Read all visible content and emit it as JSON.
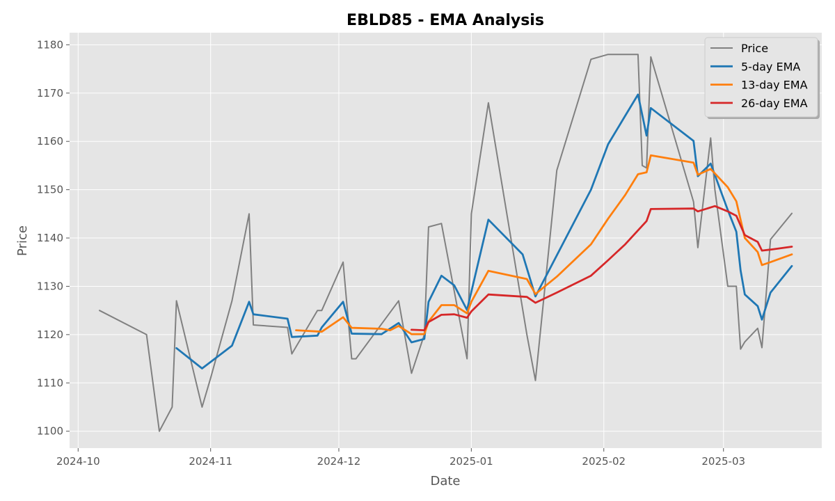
{
  "chart_data": {
    "type": "line",
    "title": "EBLD85 - EMA Analysis",
    "xlabel": "Date",
    "ylabel": "Price",
    "xlim": [
      "2024-09-29",
      "2025-03-24"
    ],
    "ylim": [
      1096.5,
      1182.5
    ],
    "x_ticks": [
      {
        "date": "2024-10-01",
        "label": "2024-10"
      },
      {
        "date": "2024-11-01",
        "label": "2024-11"
      },
      {
        "date": "2024-12-01",
        "label": "2024-12"
      },
      {
        "date": "2025-01-01",
        "label": "2025-01"
      },
      {
        "date": "2025-02-01",
        "label": "2025-02"
      },
      {
        "date": "2025-03-01",
        "label": "2025-03"
      }
    ],
    "y_ticks": [
      1100,
      1110,
      1120,
      1130,
      1140,
      1150,
      1160,
      1170,
      1180
    ],
    "grid": true,
    "legend_position": "top-right",
    "series": [
      {
        "name": "Price",
        "color": "#808080",
        "points": [
          [
            "2024-10-06",
            1125
          ],
          [
            "2024-10-17",
            1120
          ],
          [
            "2024-10-20",
            1100
          ],
          [
            "2024-10-23",
            1105
          ],
          [
            "2024-10-24",
            1127
          ],
          [
            "2024-10-30",
            1105
          ],
          [
            "2024-11-01",
            1111
          ],
          [
            "2024-11-06",
            1127
          ],
          [
            "2024-11-10",
            1145
          ],
          [
            "2024-11-11",
            1122
          ],
          [
            "2024-11-19",
            1121.5
          ],
          [
            "2024-11-20",
            1116
          ],
          [
            "2024-11-26",
            1125
          ],
          [
            "2024-11-27",
            1125
          ],
          [
            "2024-12-02",
            1135
          ],
          [
            "2024-12-04",
            1115
          ],
          [
            "2024-12-05",
            1115
          ],
          [
            "2024-12-15",
            1127
          ],
          [
            "2024-12-18",
            1112
          ],
          [
            "2024-12-21",
            1120
          ],
          [
            "2024-12-22",
            1142.3
          ],
          [
            "2024-12-25",
            1143
          ],
          [
            "2024-12-31",
            1115
          ],
          [
            "2025-01-01",
            1145
          ],
          [
            "2025-01-05",
            1168
          ],
          [
            "2025-01-14",
            1120
          ],
          [
            "2025-01-16",
            1110.5
          ],
          [
            "2025-01-21",
            1154
          ],
          [
            "2025-01-29",
            1177
          ],
          [
            "2025-02-02",
            1178
          ],
          [
            "2025-02-09",
            1178
          ],
          [
            "2025-02-10",
            1155
          ],
          [
            "2025-02-11",
            1154.5
          ],
          [
            "2025-02-12",
            1177.5
          ],
          [
            "2025-02-22",
            1147.5
          ],
          [
            "2025-02-23",
            1138
          ],
          [
            "2025-02-26",
            1160.7
          ],
          [
            "2025-02-27",
            1150
          ],
          [
            "2025-03-02",
            1130
          ],
          [
            "2025-03-04",
            1130
          ],
          [
            "2025-03-05",
            1117
          ],
          [
            "2025-03-06",
            1118.5
          ],
          [
            "2025-03-09",
            1121.3
          ],
          [
            "2025-03-10",
            1117.3
          ],
          [
            "2025-03-12",
            1139.7
          ],
          [
            "2025-03-17",
            1145.1
          ]
        ]
      },
      {
        "name": "5-day EMA",
        "color": "#1f77b4",
        "points": [
          [
            "2024-10-24",
            1117.2
          ],
          [
            "2024-10-30",
            1113
          ],
          [
            "2024-11-06",
            1117.7
          ],
          [
            "2024-11-10",
            1126.8
          ],
          [
            "2024-11-11",
            1124.2
          ],
          [
            "2024-11-19",
            1123.3
          ],
          [
            "2024-11-20",
            1119.5
          ],
          [
            "2024-11-26",
            1119.8
          ],
          [
            "2024-11-27",
            1121.5
          ],
          [
            "2024-12-02",
            1126.8
          ],
          [
            "2024-12-04",
            1120.2
          ],
          [
            "2024-12-11",
            1120.1
          ],
          [
            "2024-12-15",
            1122.4
          ],
          [
            "2024-12-18",
            1118.4
          ],
          [
            "2024-12-21",
            1119.1
          ],
          [
            "2024-12-22",
            1126.8
          ],
          [
            "2024-12-25",
            1132.2
          ],
          [
            "2024-12-28",
            1130.2
          ],
          [
            "2024-12-31",
            1125.1
          ],
          [
            "2025-01-05",
            1143.8
          ],
          [
            "2025-01-13",
            1136.6
          ],
          [
            "2025-01-16",
            1127.9
          ],
          [
            "2025-01-29",
            1150
          ],
          [
            "2025-02-02",
            1159.4
          ],
          [
            "2025-02-06",
            1165.3
          ],
          [
            "2025-02-09",
            1169.7
          ],
          [
            "2025-02-11",
            1161.2
          ],
          [
            "2025-02-12",
            1166.9
          ],
          [
            "2025-02-22",
            1160.1
          ],
          [
            "2025-02-23",
            1152.8
          ],
          [
            "2025-02-26",
            1155.4
          ],
          [
            "2025-03-02",
            1145.8
          ],
          [
            "2025-03-04",
            1141.3
          ],
          [
            "2025-03-05",
            1133.3
          ],
          [
            "2025-03-06",
            1128.3
          ],
          [
            "2025-03-09",
            1125.9
          ],
          [
            "2025-03-10",
            1123.1
          ],
          [
            "2025-03-12",
            1128.7
          ],
          [
            "2025-03-17",
            1134.2
          ]
        ]
      },
      {
        "name": "13-day EMA",
        "color": "#ff7f0e",
        "points": [
          [
            "2024-11-21",
            1120.9
          ],
          [
            "2024-11-27",
            1120.6
          ],
          [
            "2024-12-02",
            1123.6
          ],
          [
            "2024-12-04",
            1121.4
          ],
          [
            "2024-12-11",
            1121.2
          ],
          [
            "2024-12-13",
            1120.9
          ],
          [
            "2024-12-15",
            1121.8
          ],
          [
            "2024-12-18",
            1120.1
          ],
          [
            "2024-12-21",
            1120.1
          ],
          [
            "2024-12-22",
            1122.7
          ],
          [
            "2024-12-25",
            1126.1
          ],
          [
            "2024-12-28",
            1126.1
          ],
          [
            "2024-12-31",
            1124.4
          ],
          [
            "2025-01-01",
            1126.8
          ],
          [
            "2025-01-05",
            1133.2
          ],
          [
            "2025-01-14",
            1131.5
          ],
          [
            "2025-01-16",
            1128.4
          ],
          [
            "2025-01-21",
            1132
          ],
          [
            "2025-01-29",
            1138.7
          ],
          [
            "2025-02-02",
            1144
          ],
          [
            "2025-02-06",
            1148.9
          ],
          [
            "2025-02-09",
            1153.2
          ],
          [
            "2025-02-11",
            1153.6
          ],
          [
            "2025-02-12",
            1157.1
          ],
          [
            "2025-02-22",
            1155.6
          ],
          [
            "2025-02-23",
            1153.1
          ],
          [
            "2025-02-26",
            1154.3
          ],
          [
            "2025-03-02",
            1150.5
          ],
          [
            "2025-03-04",
            1147.6
          ],
          [
            "2025-03-05",
            1143.8
          ],
          [
            "2025-03-06",
            1140
          ],
          [
            "2025-03-09",
            1137.1
          ],
          [
            "2025-03-10",
            1134.4
          ],
          [
            "2025-03-12",
            1135
          ],
          [
            "2025-03-17",
            1136.6
          ]
        ]
      },
      {
        "name": "26-day EMA",
        "color": "#d62728",
        "points": [
          [
            "2024-12-18",
            1121
          ],
          [
            "2024-12-21",
            1120.9
          ],
          [
            "2024-12-22",
            1122.6
          ],
          [
            "2024-12-25",
            1124.1
          ],
          [
            "2024-12-28",
            1124.2
          ],
          [
            "2024-12-31",
            1123.5
          ],
          [
            "2025-01-01",
            1124.8
          ],
          [
            "2025-01-05",
            1128.3
          ],
          [
            "2025-01-14",
            1127.8
          ],
          [
            "2025-01-16",
            1126.6
          ],
          [
            "2025-01-21",
            1128.7
          ],
          [
            "2025-01-29",
            1132.2
          ],
          [
            "2025-02-02",
            1135.4
          ],
          [
            "2025-02-06",
            1138.7
          ],
          [
            "2025-02-11",
            1143.5
          ],
          [
            "2025-02-12",
            1146
          ],
          [
            "2025-02-22",
            1146.1
          ],
          [
            "2025-02-23",
            1145.5
          ],
          [
            "2025-02-27",
            1146.6
          ],
          [
            "2025-03-02",
            1145.5
          ],
          [
            "2025-03-04",
            1144.6
          ],
          [
            "2025-03-06",
            1140.6
          ],
          [
            "2025-03-09",
            1139.2
          ],
          [
            "2025-03-10",
            1137.4
          ],
          [
            "2025-03-12",
            1137.6
          ],
          [
            "2025-03-17",
            1138.2
          ]
        ]
      }
    ]
  }
}
